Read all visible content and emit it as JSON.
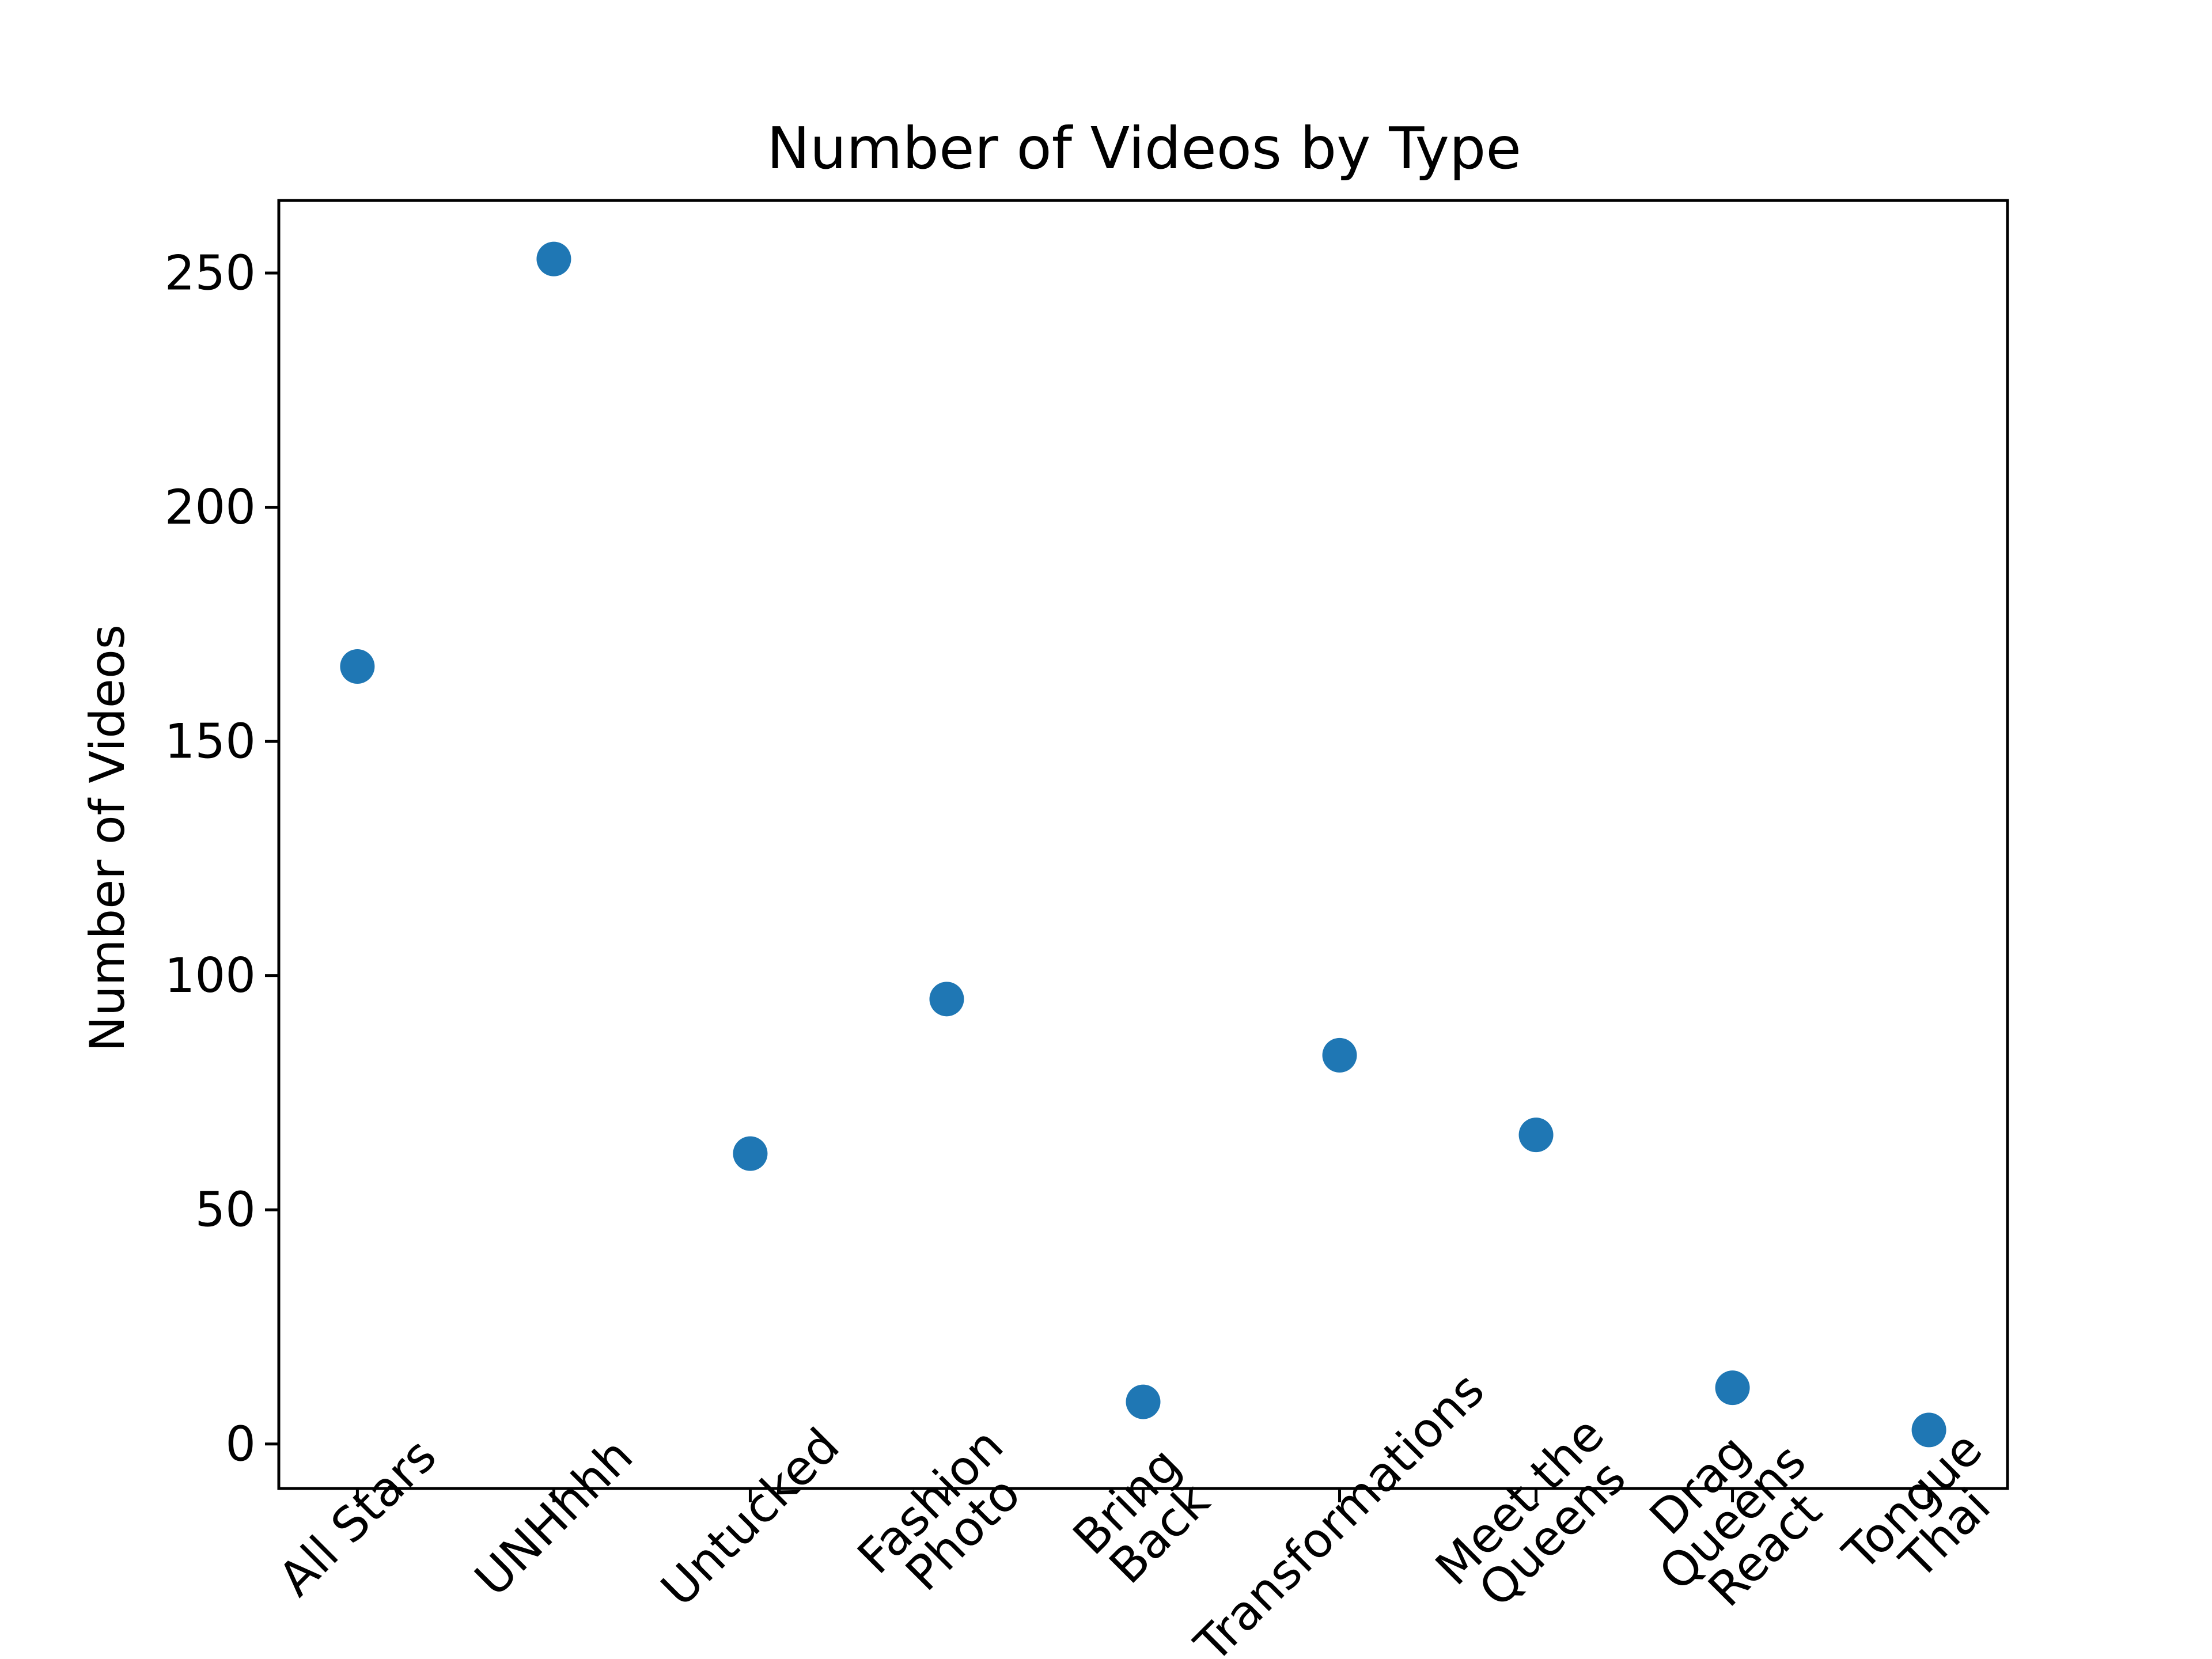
{
  "chart_data": {
    "type": "scatter",
    "title": "Number of Videos by Type",
    "xlabel": "",
    "ylabel": "Number of Videos",
    "categories": [
      [
        "All Stars"
      ],
      [
        "UNHhhh"
      ],
      [
        "Untucked"
      ],
      [
        "Fashion",
        "Photo"
      ],
      [
        "Bring",
        "Back"
      ],
      [
        "Transformations"
      ],
      [
        "Meet the",
        "Queens"
      ],
      [
        "Drag",
        "Queens",
        "React"
      ],
      [
        "Tongue",
        "Thai"
      ]
    ],
    "values": [
      166,
      253,
      62,
      95,
      9,
      83,
      66,
      12,
      3
    ],
    "yticks": [
      0,
      50,
      100,
      150,
      200,
      250
    ],
    "ylim": [
      -9.5,
      265.5
    ],
    "xlim": [
      -0.4,
      8.4
    ],
    "grid": false,
    "colors": {
      "marker": "#1f77b4",
      "axis": "#000000",
      "background": "#ffffff"
    }
  }
}
